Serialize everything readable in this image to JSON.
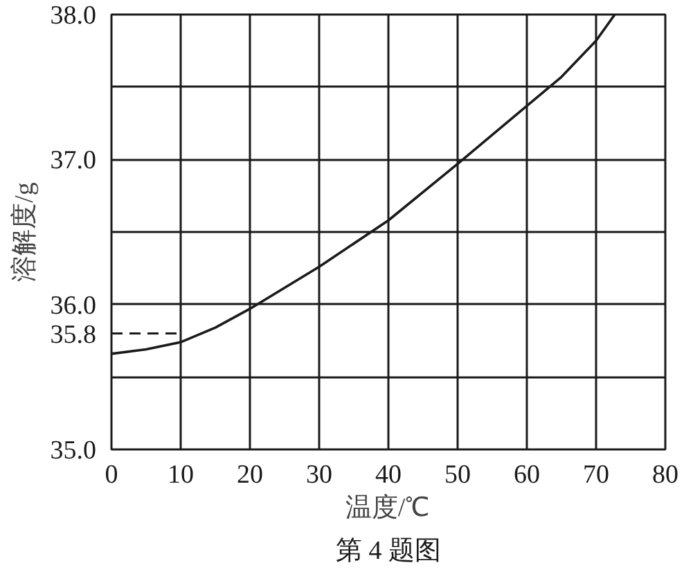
{
  "chart_data": {
    "type": "line",
    "xlabel": "温度/℃",
    "ylabel": "溶解度/g",
    "annotations": [
      "第 4 题图"
    ],
    "x": [
      0,
      5,
      10,
      15,
      20,
      30,
      40,
      50,
      60,
      65,
      70,
      72.7
    ],
    "series": [
      {
        "color": "#1a1a1a",
        "values": [
          35.66,
          35.69,
          35.74,
          35.84,
          35.97,
          36.26,
          36.58,
          36.97,
          37.37,
          37.57,
          37.82,
          38.0
        ]
      }
    ],
    "xlim": [
      0,
      80
    ],
    "xticks": [
      0,
      10,
      20,
      30,
      40,
      50,
      60,
      70,
      80
    ],
    "ylim": [
      35.0,
      38.0
    ],
    "yticks": [
      {
        "value": 35,
        "label": "35.0"
      },
      {
        "value": 35.5,
        "label": null
      },
      {
        "value": 36,
        "label": "36.0"
      },
      {
        "value": 36.5,
        "label": null
      },
      {
        "value": 37,
        "label": "37.0"
      },
      {
        "value": 37.5,
        "label": null
      },
      {
        "value": 38,
        "label": "38.0"
      }
    ],
    "ref_lines": [
      {
        "axis": "y",
        "value": 35.8,
        "label": "35.8",
        "line_style": "dashed",
        "color": "#1a1a1a"
      }
    ],
    "grid": true,
    "marker": "none",
    "line_style": "solid"
  }
}
